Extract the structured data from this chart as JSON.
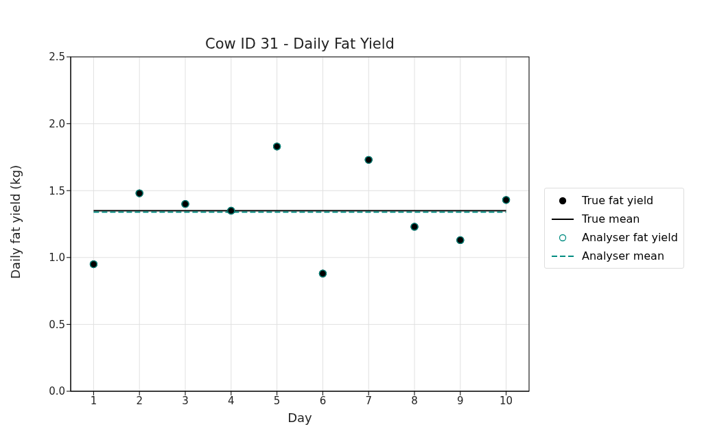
{
  "chart_data": {
    "type": "scatter",
    "title": "Cow ID 31 - Daily Fat Yield",
    "xlabel": "Day",
    "ylabel": "Daily fat yield (kg)",
    "xlim": [
      0.5,
      10.5
    ],
    "xticks": [
      1,
      2,
      3,
      4,
      5,
      6,
      7,
      8,
      9,
      10
    ],
    "ylim": [
      0,
      2.5
    ],
    "yticks": [
      {
        "value": 0,
        "label": "0.0"
      },
      {
        "value": 0.5,
        "label": "0.5"
      },
      {
        "value": 1,
        "label": "1.0"
      },
      {
        "value": 1.5,
        "label": "1.5"
      },
      {
        "value": 2,
        "label": "2.0"
      },
      {
        "value": 2.5,
        "label": "2.5"
      }
    ],
    "grid": true,
    "legend": "right",
    "series": [
      {
        "name": "True fat yield",
        "marker": "circle",
        "color": "#000000",
        "x": [
          1,
          2,
          3,
          4,
          5,
          6,
          7,
          8,
          9,
          10
        ],
        "values": [
          0.95,
          1.48,
          1.4,
          1.35,
          1.83,
          0.88,
          1.73,
          1.23,
          1.13,
          1.43
        ]
      },
      {
        "name": "True mean",
        "type": "line",
        "marker": "none",
        "line_style": "solid",
        "color": "#000000",
        "x": [
          1,
          10
        ],
        "values": [
          1.35,
          1.35
        ]
      },
      {
        "name": "Analyser fat yield",
        "marker": "circle",
        "color": "#008b80",
        "x": [
          1,
          2,
          3,
          4,
          5,
          6,
          7,
          8,
          9,
          10
        ],
        "values": [
          0.95,
          1.48,
          1.4,
          1.35,
          1.83,
          0.88,
          1.73,
          1.23,
          1.13,
          1.43
        ]
      },
      {
        "name": "Analyser mean",
        "type": "line",
        "marker": "none",
        "line_style": "dashed",
        "color": "#008b80",
        "x": [
          1,
          10
        ],
        "values": [
          1.34,
          1.34
        ]
      }
    ]
  }
}
